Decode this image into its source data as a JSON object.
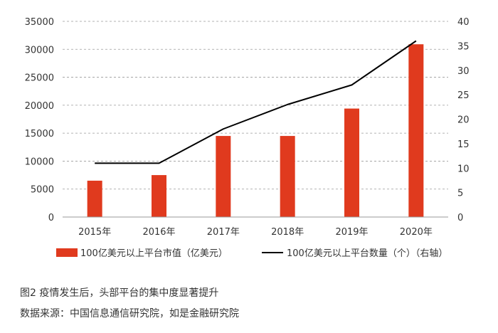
{
  "chart_data": {
    "type": "bar",
    "categories": [
      "2015年",
      "2016年",
      "2017年",
      "2018年",
      "2019年",
      "2020年"
    ],
    "series": [
      {
        "name": "100亿美元以上平台市值（亿美元）",
        "type": "bar",
        "axis": "left",
        "values": [
          6500,
          7500,
          14500,
          14500,
          19400,
          30900
        ],
        "color": "#e03a1e"
      },
      {
        "name": "100亿美元以上平台数量（个）（右轴）",
        "type": "line",
        "axis": "right",
        "values": [
          11,
          11,
          18,
          23,
          27,
          36
        ],
        "color": "#000000"
      }
    ],
    "y_left": {
      "min": 0,
      "max": 35000,
      "ticks": [
        "0",
        "5000",
        "10000",
        "15000",
        "20000",
        "25000",
        "30000",
        "35000"
      ]
    },
    "y_right": {
      "min": 0,
      "max": 40,
      "ticks": [
        "0",
        "5",
        "10",
        "15",
        "20",
        "25",
        "30",
        "35",
        "40"
      ]
    },
    "grid": "horizontal dashed",
    "legend_position": "bottom"
  },
  "caption": {
    "title": "图2  疫情发生后，头部平台的集中度显著提升",
    "source": "数据来源：中国信息通信研究院，如是金融研究院"
  }
}
